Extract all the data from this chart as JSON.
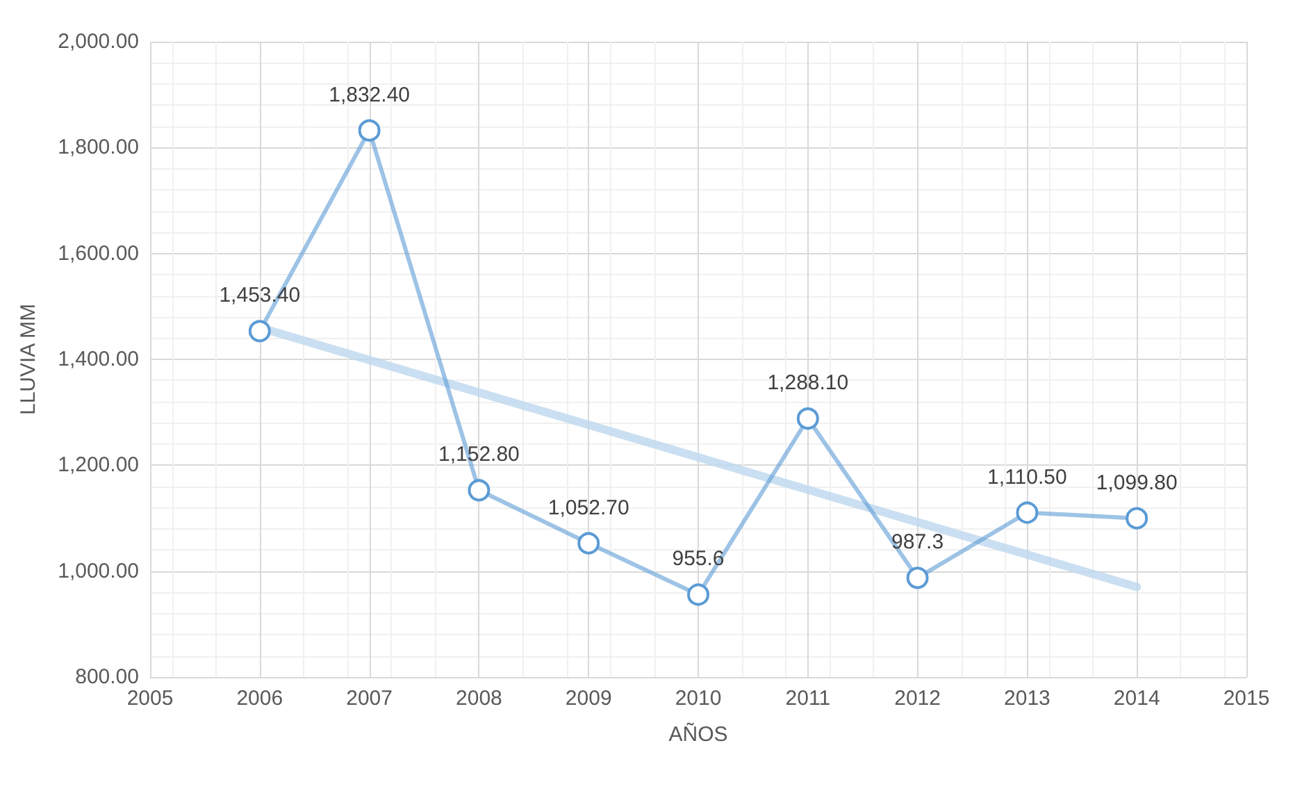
{
  "chart_data": {
    "type": "line",
    "xlabel": "AÑOS",
    "ylabel": "LLUVIA MM",
    "x": [
      2006,
      2007,
      2008,
      2009,
      2010,
      2011,
      2012,
      2013,
      2014
    ],
    "series": [
      {
        "color": "#5b9bd5",
        "values": [
          1453.4,
          1832.4,
          1152.8,
          1052.7,
          955.6,
          1288.1,
          987.3,
          1110.5,
          1099.8
        ],
        "value_labels": [
          "1,453.40",
          "1,832.40",
          "1,152.80",
          "1,052.70",
          "955.6",
          "1,288.10",
          "987.3",
          "1,110.50",
          "1,099.80"
        ],
        "marker": "circle"
      },
      {
        "type": "line",
        "color": "#bdd7ee",
        "x": [
          2006,
          2014
        ],
        "values": [
          1460,
          970
        ],
        "marker": "none"
      }
    ],
    "xlim": [
      2005,
      2015
    ],
    "xticks": [
      2005,
      2006,
      2007,
      2008,
      2009,
      2010,
      2011,
      2012,
      2013,
      2014,
      2015
    ],
    "ylim": [
      800,
      2000
    ],
    "yticks": [
      {
        "value": 800,
        "label": "800.00"
      },
      {
        "value": 1000,
        "label": "1,000.00"
      },
      {
        "value": 1200,
        "label": "1,200.00"
      },
      {
        "value": 1400,
        "label": "1,400.00"
      },
      {
        "value": 1600,
        "label": "1,600.00"
      },
      {
        "value": 1800,
        "label": "1,800.00"
      },
      {
        "value": 2000,
        "label": "2,000.00"
      }
    ],
    "grid": true,
    "line_style": "solid"
  }
}
